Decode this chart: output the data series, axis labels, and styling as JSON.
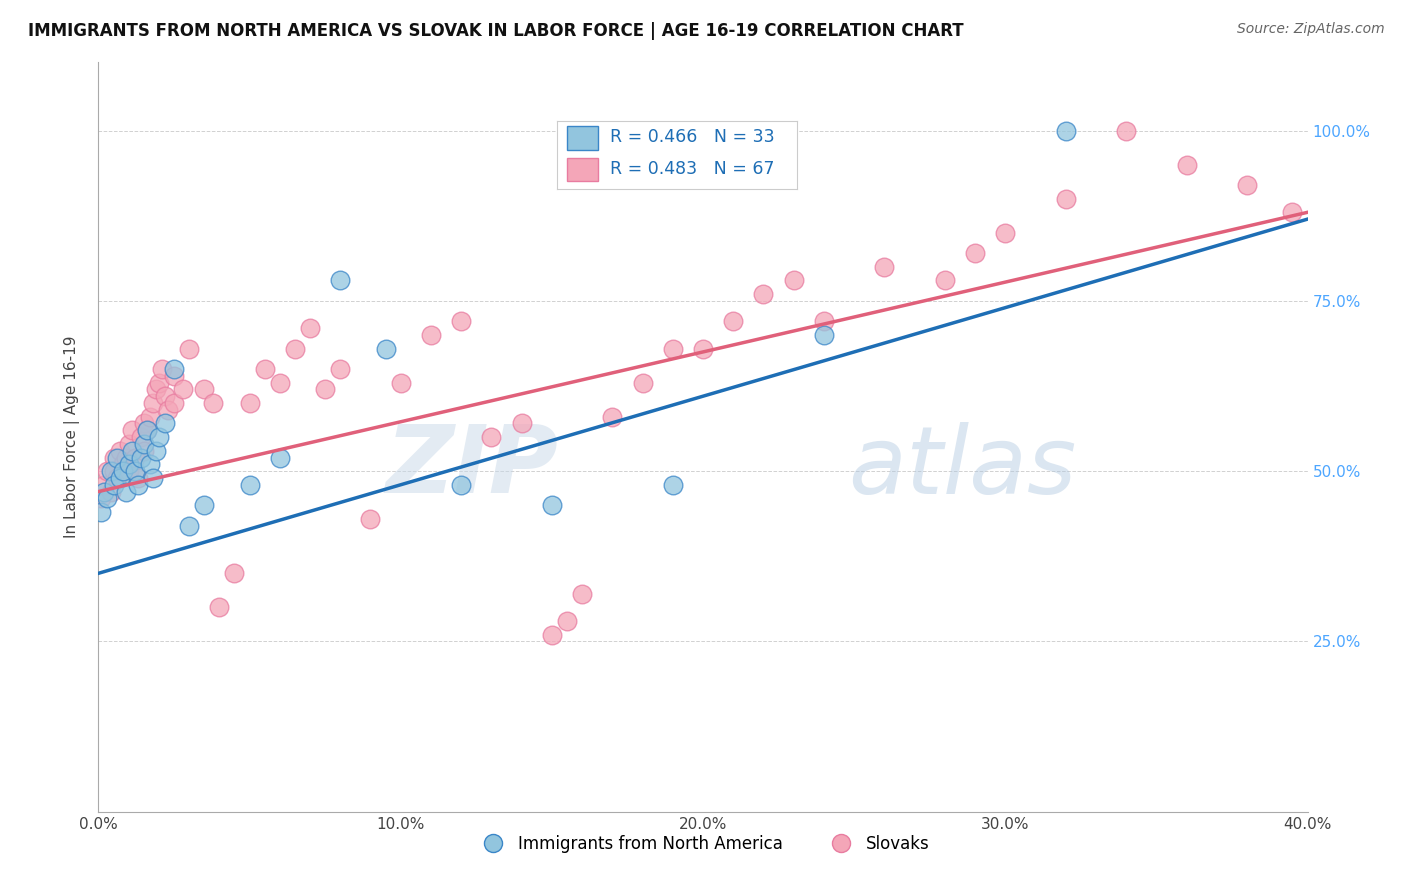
{
  "title": "IMMIGRANTS FROM NORTH AMERICA VS SLOVAK IN LABOR FORCE | AGE 16-19 CORRELATION CHART",
  "source": "Source: ZipAtlas.com",
  "ylabel": "In Labor Force | Age 16-19",
  "xlim": [
    0.0,
    0.4
  ],
  "ylim": [
    0.0,
    1.1
  ],
  "xtick_labels": [
    "0.0%",
    "10.0%",
    "20.0%",
    "30.0%",
    "40.0%"
  ],
  "xtick_vals": [
    0.0,
    0.1,
    0.2,
    0.3,
    0.4
  ],
  "ytick_labels": [
    "25.0%",
    "50.0%",
    "75.0%",
    "100.0%"
  ],
  "ytick_vals": [
    0.25,
    0.5,
    0.75,
    1.0
  ],
  "blue_color": "#92c5de",
  "pink_color": "#f4a6b8",
  "blue_edge_color": "#3a86c8",
  "pink_edge_color": "#e87ca0",
  "blue_line_color": "#1e6eb5",
  "pink_line_color": "#e0607a",
  "label_color": "#4da6ff",
  "R_blue": 0.466,
  "N_blue": 33,
  "R_pink": 0.483,
  "N_pink": 67,
  "legend_label_blue": "Immigrants from North America",
  "legend_label_pink": "Slovaks",
  "watermark_zip": "ZIP",
  "watermark_atlas": "atlas",
  "blue_scatter_x": [
    0.001,
    0.002,
    0.003,
    0.004,
    0.005,
    0.006,
    0.007,
    0.008,
    0.009,
    0.01,
    0.011,
    0.012,
    0.013,
    0.014,
    0.015,
    0.016,
    0.017,
    0.018,
    0.019,
    0.02,
    0.022,
    0.025,
    0.03,
    0.035,
    0.05,
    0.06,
    0.08,
    0.095,
    0.12,
    0.15,
    0.19,
    0.24,
    0.32
  ],
  "blue_scatter_y": [
    0.44,
    0.47,
    0.46,
    0.5,
    0.48,
    0.52,
    0.49,
    0.5,
    0.47,
    0.51,
    0.53,
    0.5,
    0.48,
    0.52,
    0.54,
    0.56,
    0.51,
    0.49,
    0.53,
    0.55,
    0.57,
    0.65,
    0.42,
    0.45,
    0.48,
    0.52,
    0.78,
    0.68,
    0.48,
    0.45,
    0.48,
    0.7,
    1.0
  ],
  "pink_scatter_x": [
    0.001,
    0.002,
    0.003,
    0.004,
    0.005,
    0.005,
    0.006,
    0.007,
    0.008,
    0.009,
    0.01,
    0.01,
    0.011,
    0.012,
    0.013,
    0.014,
    0.015,
    0.015,
    0.016,
    0.017,
    0.018,
    0.019,
    0.02,
    0.021,
    0.022,
    0.023,
    0.025,
    0.025,
    0.028,
    0.03,
    0.035,
    0.038,
    0.04,
    0.045,
    0.05,
    0.055,
    0.06,
    0.065,
    0.07,
    0.075,
    0.08,
    0.09,
    0.1,
    0.11,
    0.12,
    0.13,
    0.14,
    0.15,
    0.155,
    0.16,
    0.17,
    0.18,
    0.19,
    0.2,
    0.21,
    0.22,
    0.23,
    0.24,
    0.26,
    0.28,
    0.29,
    0.3,
    0.32,
    0.34,
    0.36,
    0.38,
    0.395
  ],
  "pink_scatter_y": [
    0.46,
    0.48,
    0.5,
    0.47,
    0.52,
    0.5,
    0.49,
    0.53,
    0.51,
    0.52,
    0.5,
    0.54,
    0.56,
    0.52,
    0.49,
    0.55,
    0.57,
    0.53,
    0.56,
    0.58,
    0.6,
    0.62,
    0.63,
    0.65,
    0.61,
    0.59,
    0.64,
    0.6,
    0.62,
    0.68,
    0.62,
    0.6,
    0.3,
    0.35,
    0.6,
    0.65,
    0.63,
    0.68,
    0.71,
    0.62,
    0.65,
    0.43,
    0.63,
    0.7,
    0.72,
    0.55,
    0.57,
    0.26,
    0.28,
    0.32,
    0.58,
    0.63,
    0.68,
    0.68,
    0.72,
    0.76,
    0.78,
    0.72,
    0.8,
    0.78,
    0.82,
    0.85,
    0.9,
    1.0,
    0.95,
    0.92,
    0.88
  ],
  "blue_trend_x0": 0.0,
  "blue_trend_x1": 0.4,
  "blue_trend_y0": 0.35,
  "blue_trend_y1": 0.87,
  "pink_trend_x0": 0.0,
  "pink_trend_x1": 0.4,
  "pink_trend_y0": 0.47,
  "pink_trend_y1": 0.88
}
